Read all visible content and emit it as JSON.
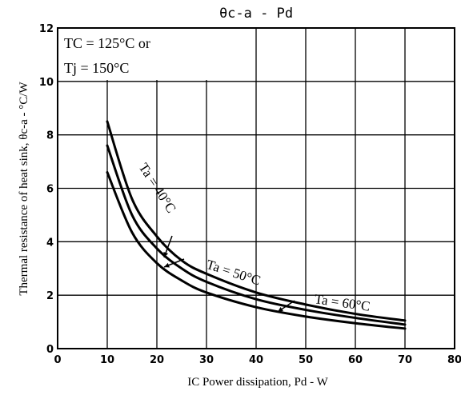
{
  "chart_data": {
    "type": "line",
    "title": "θc-a - Pd",
    "xlabel": "IC Power dissipation, Pd - W",
    "ylabel": "Thermal resistance of heat sink, θc-a - °C/W",
    "xlim": [
      0,
      80
    ],
    "ylim": [
      0,
      12
    ],
    "xticks": [
      "0",
      "10",
      "20",
      "30",
      "40",
      "50",
      "60",
      "70",
      "80"
    ],
    "yticks": [
      "0",
      "2",
      "4",
      "6",
      "8",
      "10",
      "12"
    ],
    "grid": true,
    "conditions": [
      "TC = 125°C  or",
      "Tj = 150°C"
    ],
    "series": [
      {
        "name": "Ta = 40°C",
        "x": [
          10,
          15,
          20,
          25,
          30,
          40,
          50,
          60,
          70
        ],
        "y": [
          8.5,
          5.6,
          4.2,
          3.3,
          2.8,
          2.1,
          1.65,
          1.3,
          1.05
        ]
      },
      {
        "name": "Ta = 50°C",
        "x": [
          10,
          15,
          20,
          25,
          30,
          40,
          50,
          60,
          70
        ],
        "y": [
          7.6,
          5.0,
          3.75,
          3.0,
          2.5,
          1.85,
          1.45,
          1.15,
          0.9
        ]
      },
      {
        "name": "Ta = 60°C",
        "x": [
          10,
          15,
          20,
          25,
          30,
          40,
          50,
          60,
          70
        ],
        "y": [
          6.6,
          4.35,
          3.2,
          2.55,
          2.1,
          1.55,
          1.2,
          0.95,
          0.75
        ]
      }
    ]
  }
}
